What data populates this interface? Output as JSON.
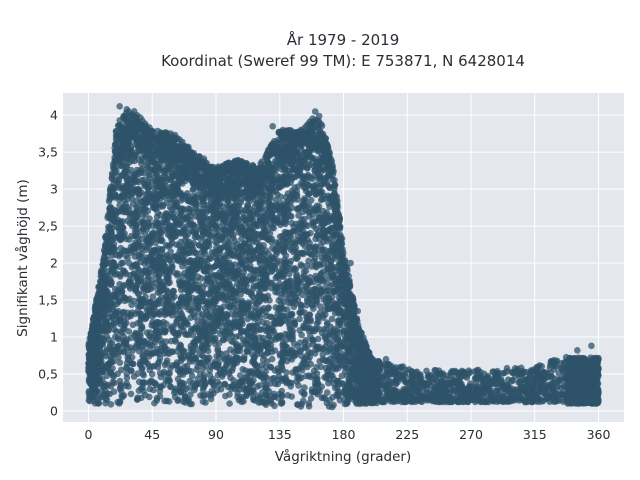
{
  "chart_data": {
    "type": "scatter",
    "title_line1": "År 1979 - 2019",
    "title_line2": "Koordinat (Sweref 99 TM): E 753871, N 6428014",
    "xlabel": "Vågriktning (grader)",
    "ylabel": "Signifikant våghöjd (m)",
    "xlim": [
      -18,
      378
    ],
    "ylim": [
      -0.15,
      4.3
    ],
    "xticks": [
      0,
      45,
      90,
      135,
      180,
      225,
      270,
      315,
      360
    ],
    "xtick_labels": [
      "0",
      "45",
      "90",
      "135",
      "180",
      "225",
      "270",
      "315",
      "360"
    ],
    "yticks": [
      0,
      0.5,
      1,
      1.5,
      2,
      2.5,
      3,
      3.5,
      4
    ],
    "ytick_labels": [
      "0",
      "0,5",
      "1",
      "1,5",
      "2",
      "2,5",
      "3",
      "3,5",
      "4"
    ],
    "grid": true,
    "colors": {
      "marker": "#2e5369",
      "plot_bg": "#e5e7ef",
      "grid": "#ffffff"
    },
    "envelope": [
      {
        "x": 0,
        "y_min": 0.1,
        "y_max": 0.9
      },
      {
        "x": 10,
        "y_min": 0.08,
        "y_max": 2.0
      },
      {
        "x": 20,
        "y_min": 0.08,
        "y_max": 3.9
      },
      {
        "x": 30,
        "y_min": 0.08,
        "y_max": 4.1
      },
      {
        "x": 45,
        "y_min": 0.08,
        "y_max": 3.8
      },
      {
        "x": 60,
        "y_min": 0.08,
        "y_max": 3.75
      },
      {
        "x": 75,
        "y_min": 0.08,
        "y_max": 3.5
      },
      {
        "x": 90,
        "y_min": 0.08,
        "y_max": 3.3
      },
      {
        "x": 105,
        "y_min": 0.08,
        "y_max": 3.4
      },
      {
        "x": 120,
        "y_min": 0.08,
        "y_max": 3.3
      },
      {
        "x": 135,
        "y_min": 0.05,
        "y_max": 3.8
      },
      {
        "x": 150,
        "y_min": 0.05,
        "y_max": 3.8
      },
      {
        "x": 162,
        "y_min": 0.05,
        "y_max": 4.05
      },
      {
        "x": 172,
        "y_min": 0.05,
        "y_max": 3.4
      },
      {
        "x": 180,
        "y_min": 0.05,
        "y_max": 2.2
      },
      {
        "x": 190,
        "y_min": 0.08,
        "y_max": 1.2
      },
      {
        "x": 200,
        "y_min": 0.1,
        "y_max": 0.7
      },
      {
        "x": 230,
        "y_min": 0.1,
        "y_max": 0.55
      },
      {
        "x": 270,
        "y_min": 0.1,
        "y_max": 0.55
      },
      {
        "x": 315,
        "y_min": 0.1,
        "y_max": 0.6
      },
      {
        "x": 345,
        "y_min": 0.1,
        "y_max": 0.8
      },
      {
        "x": 360,
        "y_min": 0.1,
        "y_max": 0.7
      }
    ]
  }
}
